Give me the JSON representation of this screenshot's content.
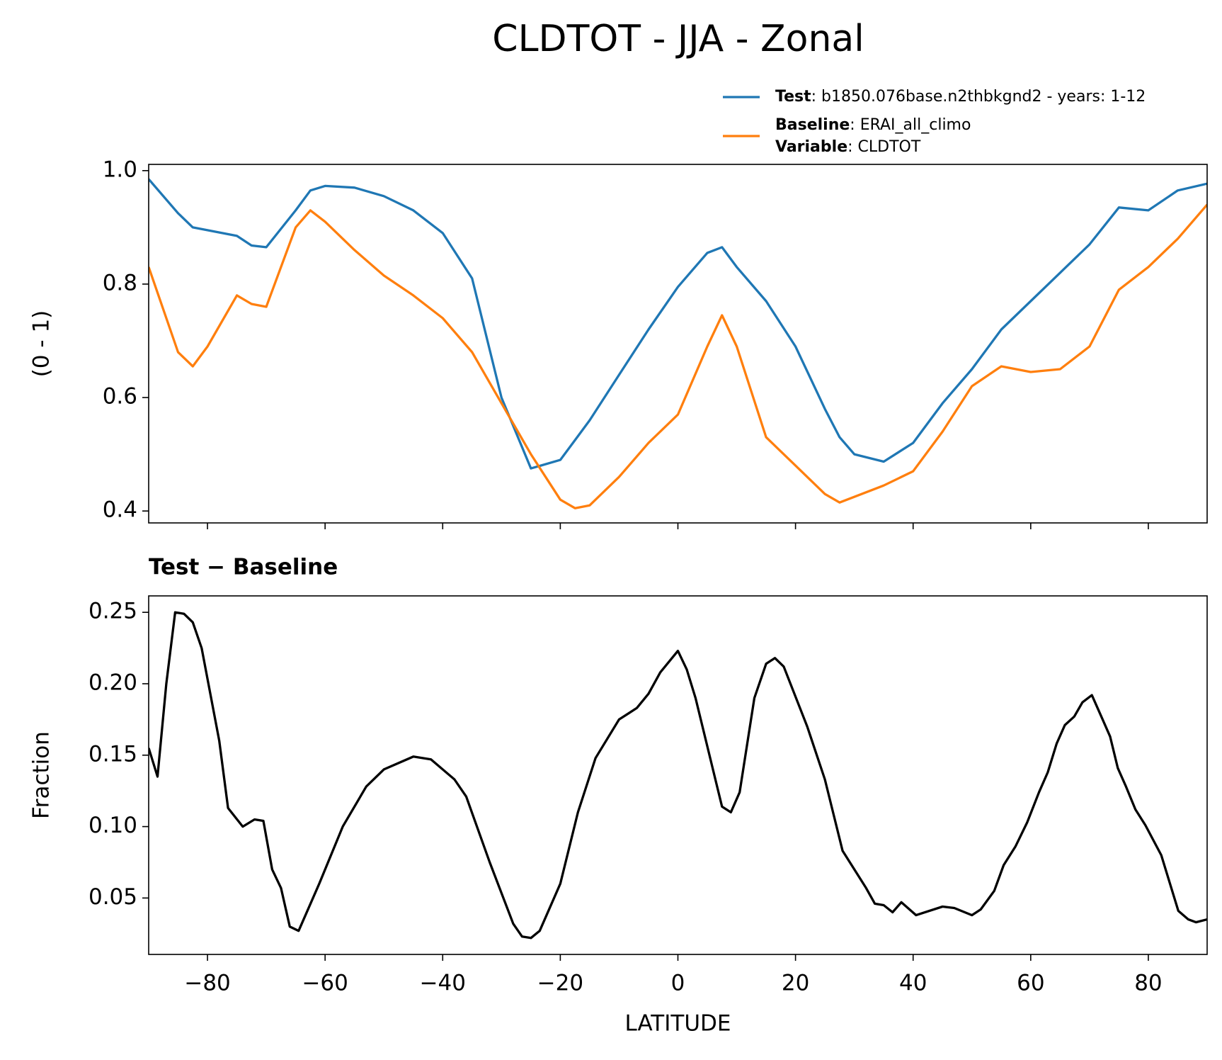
{
  "title": "CLDTOT - JJA - Zonal",
  "chart_data": [
    {
      "type": "line",
      "ylabel": "(0 - 1)",
      "x": [
        -90,
        -85,
        -82.5,
        -80,
        -75,
        -72.5,
        -70,
        -65,
        -62.5,
        -60,
        -55,
        -50,
        -45,
        -40,
        -35,
        -30,
        -25,
        -20,
        -17.5,
        -15,
        -10,
        -5,
        0,
        5,
        7.5,
        10,
        15,
        20,
        25,
        27.5,
        30,
        35,
        40,
        45,
        50,
        55,
        60,
        65,
        70,
        75,
        80,
        85,
        90
      ],
      "series": [
        {
          "name": "Test",
          "description": ": b1850.076base.n2thbkgnd2 - years: 1-12",
          "color": "#1f77b4",
          "values": [
            0.985,
            0.925,
            0.9,
            0.895,
            0.885,
            0.868,
            0.865,
            0.93,
            0.965,
            0.973,
            0.97,
            0.955,
            0.93,
            0.89,
            0.81,
            0.6,
            0.475,
            0.49,
            0.525,
            0.56,
            0.64,
            0.72,
            0.795,
            0.855,
            0.865,
            0.83,
            0.77,
            0.69,
            0.58,
            0.53,
            0.5,
            0.487,
            0.52,
            0.59,
            0.65,
            0.72,
            0.77,
            0.82,
            0.87,
            0.935,
            0.93,
            0.965,
            0.977
          ]
        },
        {
          "name": "Baseline",
          "description": ": ERAI_all_climo",
          "color": "#ff7f0e",
          "values": [
            0.83,
            0.68,
            0.655,
            0.69,
            0.78,
            0.765,
            0.76,
            0.9,
            0.93,
            0.91,
            0.86,
            0.815,
            0.78,
            0.74,
            0.68,
            0.59,
            0.5,
            0.42,
            0.405,
            0.41,
            0.46,
            0.52,
            0.57,
            0.69,
            0.745,
            0.69,
            0.53,
            0.48,
            0.43,
            0.415,
            0.425,
            0.445,
            0.47,
            0.54,
            0.62,
            0.655,
            0.645,
            0.65,
            0.69,
            0.79,
            0.83,
            0.88,
            0.94
          ]
        }
      ],
      "legend_note": {
        "name": "Variable",
        "description": ": CLDTOT"
      },
      "xlim": [
        -90,
        90
      ],
      "xticks": [
        {
          "value": -80,
          "label": "−80"
        },
        {
          "value": -60,
          "label": "−60"
        },
        {
          "value": -40,
          "label": "−40"
        },
        {
          "value": -20,
          "label": "−20"
        },
        0,
        20,
        40,
        60,
        80
      ],
      "ylim": [
        0.379,
        1.011
      ],
      "yticks": [
        0.4,
        0.6,
        0.8,
        {
          "value": 1,
          "label": "1.0"
        }
      ]
    },
    {
      "type": "line",
      "title": "Test − Baseline",
      "xlabel": "LATITUDE",
      "ylabel": "Fraction",
      "x": [
        -90,
        -88.5,
        -87,
        -85.5,
        -84,
        -82.5,
        -81,
        -78,
        -76.5,
        -74,
        -72,
        -70.5,
        -69,
        -67.5,
        -66,
        -64.5,
        -61,
        -57,
        -53,
        -50,
        -45,
        -42,
        -38,
        -36,
        -32,
        -28,
        -26.5,
        -25,
        -23.5,
        -20,
        -17,
        -14,
        -10,
        -7,
        -5,
        -3,
        0,
        1.5,
        3,
        7.5,
        9,
        10.5,
        13,
        15,
        16.5,
        18,
        22,
        25,
        28,
        32,
        33.5,
        35,
        36.5,
        38,
        40.5,
        45,
        47,
        50,
        51.5,
        53.8,
        55.4,
        57.4,
        59.4,
        61.4,
        62.9,
        64.4,
        65.8,
        67.4,
        68.8,
        70.4,
        71.9,
        73.5,
        74.8,
        76.2,
        77.8,
        79.5,
        82.2,
        85.1,
        86.8,
        88.1,
        90
      ],
      "values": [
        0.155,
        0.135,
        0.2,
        0.25,
        0.249,
        0.243,
        0.225,
        0.16,
        0.113,
        0.1,
        0.105,
        0.104,
        0.07,
        0.057,
        0.03,
        0.027,
        0.06,
        0.1,
        0.128,
        0.14,
        0.149,
        0.147,
        0.133,
        0.121,
        0.075,
        0.032,
        0.023,
        0.022,
        0.027,
        0.06,
        0.11,
        0.148,
        0.175,
        0.183,
        0.193,
        0.208,
        0.223,
        0.21,
        0.19,
        0.114,
        0.11,
        0.124,
        0.19,
        0.214,
        0.218,
        0.212,
        0.17,
        0.133,
        0.083,
        0.057,
        0.046,
        0.045,
        0.04,
        0.047,
        0.038,
        0.044,
        0.043,
        0.038,
        0.042,
        0.055,
        0.073,
        0.086,
        0.103,
        0.124,
        0.138,
        0.158,
        0.171,
        0.177,
        0.187,
        0.192,
        0.178,
        0.163,
        0.141,
        0.128,
        0.112,
        0.101,
        0.08,
        0.041,
        0.035,
        0.033,
        0.035
      ],
      "color": "#000000",
      "xlim": [
        -90,
        90
      ],
      "xticks": [
        {
          "value": -80,
          "label": "−80"
        },
        {
          "value": -60,
          "label": "−60"
        },
        {
          "value": -40,
          "label": "−40"
        },
        {
          "value": -20,
          "label": "−20"
        },
        0,
        20,
        40,
        60,
        80
      ],
      "ylim": [
        0.0105,
        0.2615
      ],
      "yticks": [
        0.05,
        {
          "value": 0.1,
          "label": "0.10"
        },
        0.15,
        {
          "value": 0.2,
          "label": "0.20"
        },
        0.25
      ]
    }
  ]
}
